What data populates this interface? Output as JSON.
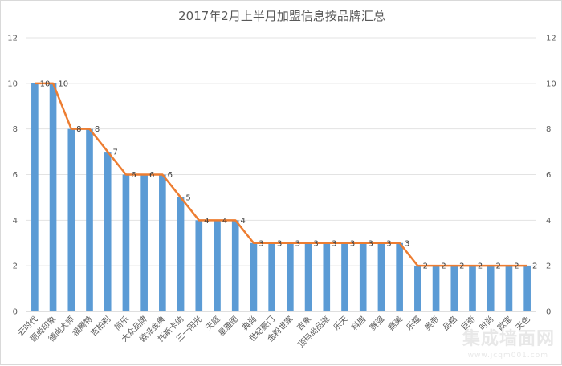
{
  "chart_data": {
    "type": "bar",
    "title": "2017年2月上半月加盟信息按品牌汇总",
    "xlabel": "",
    "ylabel": "",
    "ylim": [
      0,
      12
    ],
    "yticks": [
      0,
      2,
      4,
      6,
      8,
      10,
      12
    ],
    "grid": true,
    "legend": "none",
    "categories": [
      "云时代",
      "丽尚印象",
      "德尚大师",
      "福腾特",
      "吉柏利",
      "简乐",
      "大众品牌",
      "欧派金典",
      "托斯卡纳",
      "三一阳光",
      "天庭",
      "星雅图",
      "典尚",
      "世纪豪门",
      "金粉世家",
      "吉象",
      "顶玛尚品道",
      "乐天",
      "科居",
      "赛强",
      "鼎美",
      "乐福",
      "奥帝",
      "品格",
      "巨奇",
      "时尚",
      "欧宝",
      "天色"
    ],
    "series": [
      {
        "type": "bar",
        "values": [
          10,
          10,
          8,
          8,
          7,
          6,
          6,
          6,
          5,
          4,
          4,
          4,
          3,
          3,
          3,
          3,
          3,
          3,
          3,
          3,
          3,
          2,
          2,
          2,
          2,
          2,
          2,
          2
        ],
        "color": "#5b9bd5"
      },
      {
        "type": "line",
        "values": [
          10,
          10,
          8,
          8,
          7,
          6,
          6,
          6,
          5,
          4,
          4,
          4,
          3,
          3,
          3,
          3,
          3,
          3,
          3,
          3,
          3,
          2,
          2,
          2,
          2,
          2,
          2,
          2
        ],
        "color": "#ed7d31"
      }
    ]
  },
  "watermark": {
    "text": "集成墙面网",
    "sub": "www.jcqm001.com"
  }
}
